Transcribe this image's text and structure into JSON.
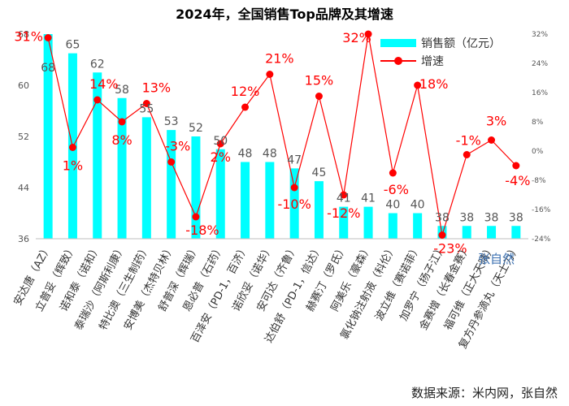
{
  "title": "2024年，全国销售Top品牌及其增速",
  "watermark": "张自然",
  "source": "数据来源：米内网，张自然",
  "legend": {
    "bar_label": "销售额（亿元）",
    "line_label": "增速"
  },
  "colors": {
    "bar": "#00ffff",
    "line": "#ff0000",
    "label_red": "#ff0000",
    "axis_text": "#555555"
  },
  "chart_data": {
    "type": "bar",
    "categories": [
      "安达唐（AZ）",
      "立普妥（辉致）",
      "诺和泰（诺和）",
      "泰瑞沙（阿斯利康）",
      "特比澳（三生制药）",
      "安博美（杰特贝林）",
      "舒普深（辉瑞）",
      "恩必普（石药）",
      "百泽安（PD-1，百济）",
      "诺欣妥（诺华）",
      "安可达（齐鲁）",
      "达伯舒（PD-1，信达）",
      "赫赛汀（罗氏）",
      "阿美乐（豪森）",
      "氯化钠注射液（科伦）",
      "波立维（赛诺菲）",
      "加罗宁（扬子江）",
      "金赛增（长春金赛）",
      "福可维（正大天晴）",
      "复方丹参滴丸（天士力）"
    ],
    "series": [
      {
        "name": "销售额（亿元）",
        "type": "bar",
        "axis": "left",
        "values": [
          68,
          65,
          62,
          58,
          55,
          53,
          52,
          50,
          48,
          48,
          47,
          45,
          41,
          41,
          40,
          40,
          38,
          38,
          38,
          38
        ]
      },
      {
        "name": "增速",
        "type": "line",
        "axis": "right",
        "unit": "%",
        "values": [
          31,
          1,
          14,
          8,
          13,
          -3,
          -18,
          2,
          12,
          21,
          -10,
          15,
          -12,
          32,
          -6,
          18,
          -23,
          -1,
          3,
          -4
        ]
      }
    ],
    "y_left": {
      "ticks": [
        "36",
        "44",
        "52",
        "60",
        "68"
      ],
      "ylim": [
        36,
        68
      ]
    },
    "y_right": {
      "ticks": [
        "-24%",
        "-16%",
        "-8%",
        "0%",
        "8%",
        "16%",
        "24%",
        "32%"
      ],
      "ylim": [
        -24,
        32
      ]
    },
    "bar_labels": [
      "68",
      "65",
      "62",
      "58",
      "55",
      "53",
      "52",
      "50",
      "48",
      "48",
      "47",
      "45",
      "41",
      "41",
      "40",
      "40",
      "38",
      "38",
      "38",
      "38"
    ],
    "line_labels": [
      "31%",
      "1%",
      "14%",
      "8%",
      "13%",
      "-3%",
      "-18%",
      "2%",
      "12%",
      "21%",
      "-10%",
      "15%",
      "-12%",
      "32%",
      "-6%",
      "18%",
      "-23%",
      "-1%",
      "3%",
      "-4%"
    ],
    "grid": false,
    "legend_position": "top-right"
  }
}
